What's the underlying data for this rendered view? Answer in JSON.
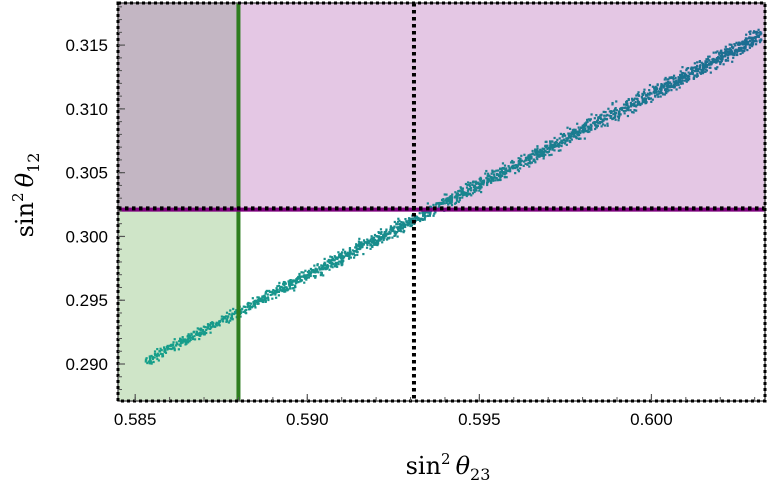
{
  "chart_data": {
    "type": "scatter",
    "title": "",
    "xlabel": {
      "base": "sin",
      "sup": "2",
      "sym": "θ",
      "sub": "23"
    },
    "ylabel": {
      "base": "sin",
      "sup": "2",
      "sym": "θ",
      "sub": "12"
    },
    "xlim": [
      0.5845,
      0.6033
    ],
    "ylim": [
      0.2871,
      0.3183
    ],
    "x_ticks": [
      {
        "value": 0.585,
        "label": "0.585"
      },
      {
        "value": 0.59,
        "label": "0.590"
      },
      {
        "value": 0.595,
        "label": "0.595"
      },
      {
        "value": 0.6,
        "label": "0.600"
      }
    ],
    "y_ticks": [
      {
        "value": 0.29,
        "label": "0.290"
      },
      {
        "value": 0.295,
        "label": "0.295"
      },
      {
        "value": 0.3,
        "label": "0.300"
      },
      {
        "value": 0.305,
        "label": "0.305"
      },
      {
        "value": 0.31,
        "label": "0.310"
      },
      {
        "value": 0.315,
        "label": "0.315"
      }
    ],
    "regions": [
      {
        "name": "x-excluded",
        "x": [
          0.5845,
          0.588
        ],
        "y": [
          0.2871,
          0.3183
        ],
        "color": "#cfe5c8"
      },
      {
        "name": "y-excluded",
        "x": [
          0.5845,
          0.6033
        ],
        "y": [
          0.3021,
          0.3183
        ],
        "color": "#e4c7e4"
      },
      {
        "name": "overlap",
        "x": [
          0.5845,
          0.588
        ],
        "y": [
          0.3021,
          0.3183
        ],
        "color": "#c3b6c3"
      }
    ],
    "reference_lines": [
      {
        "orientation": "vertical",
        "value": 0.588,
        "color": "#2e7d1f",
        "style": "solid"
      },
      {
        "orientation": "horizontal",
        "value": 0.3021,
        "color": "#800080",
        "style": "solid"
      },
      {
        "orientation": "vertical",
        "value": 0.5931,
        "color": "#000000",
        "style": "dotted"
      },
      {
        "orientation": "horizontal",
        "value": 0.3022,
        "color": "#000000",
        "style": "dotted"
      }
    ],
    "scatter": {
      "relation": "y ≈ 0.2905 + 1.427·(x − 0.5855)",
      "x_range": [
        0.5853,
        0.6032
      ],
      "y_spread": 0.00055,
      "n_points": 2200,
      "color_low": "#16a08a",
      "color_high": "#1c6c92"
    },
    "grid": false,
    "frame_style": "dotted",
    "colors": {
      "axis": "#555555",
      "frame_dotted": "#000000"
    }
  }
}
